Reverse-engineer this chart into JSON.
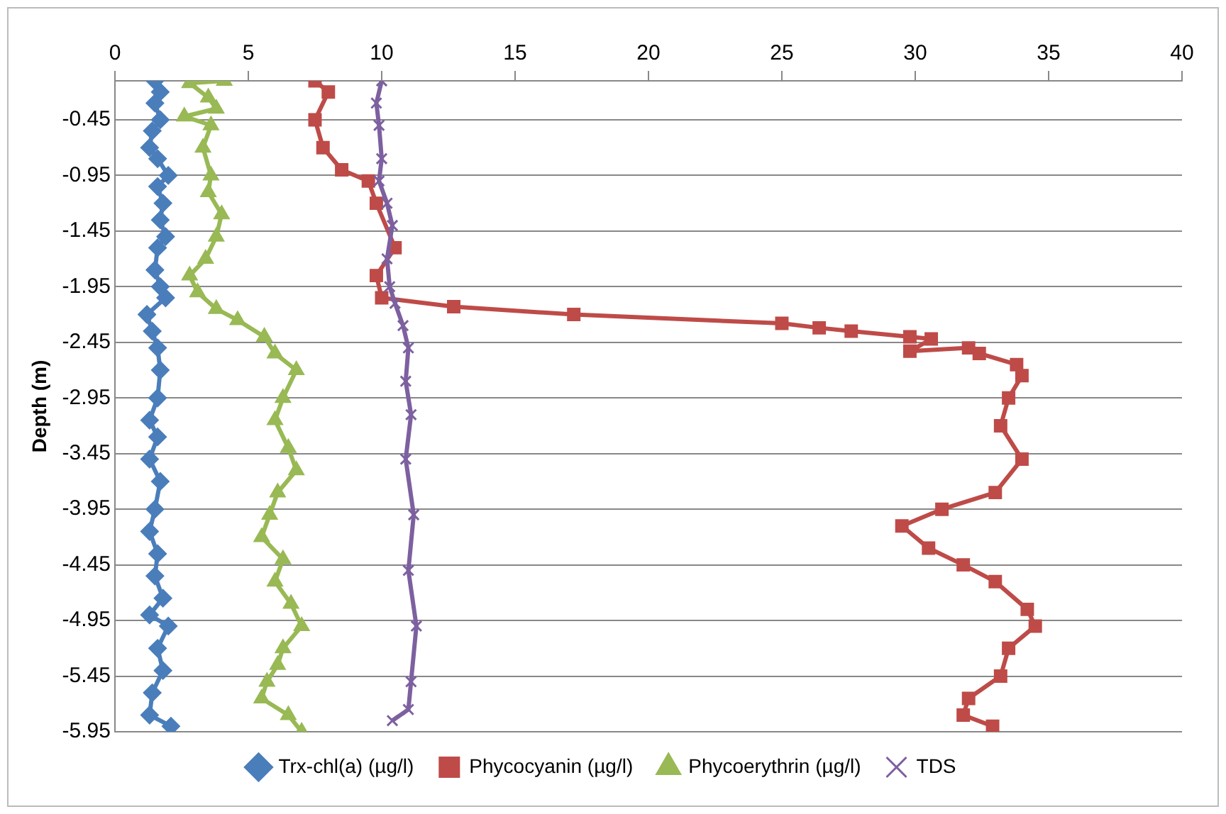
{
  "chart_data": {
    "type": "line",
    "ylabel": "Depth (m)",
    "xlim": [
      0,
      40
    ],
    "xticks": [
      0,
      5,
      10,
      15,
      20,
      25,
      30,
      35,
      40
    ],
    "ylim": [
      -5.95,
      -0.1
    ],
    "yticks": [
      -0.45,
      -0.95,
      -1.45,
      -1.95,
      -2.45,
      -2.95,
      -3.45,
      -3.95,
      -4.45,
      -4.95,
      -5.45,
      -5.95
    ],
    "grid": "y",
    "legend": "bottom",
    "line_style": "solid",
    "series": [
      {
        "name": "Trx-chl(a) (µg/l)",
        "color": "#4a7ebb",
        "marker": "diamond",
        "x": [
          1.5,
          1.7,
          1.5,
          1.7,
          1.4,
          1.3,
          1.6,
          2.0,
          1.6,
          1.8,
          1.7,
          1.9,
          1.6,
          1.5,
          1.7,
          1.9,
          1.2,
          1.4,
          1.6,
          1.7,
          1.6,
          1.3,
          1.6,
          1.3,
          1.7,
          1.5,
          1.3,
          1.6,
          1.5,
          1.8,
          1.3,
          2.0,
          1.6,
          1.8,
          1.4,
          1.3,
          2.1
        ],
        "values": [
          -0.1,
          -0.2,
          -0.3,
          -0.45,
          -0.55,
          -0.7,
          -0.8,
          -0.95,
          -1.05,
          -1.2,
          -1.35,
          -1.5,
          -1.6,
          -1.8,
          -1.95,
          -2.05,
          -2.2,
          -2.35,
          -2.5,
          -2.7,
          -2.95,
          -3.15,
          -3.3,
          -3.5,
          -3.7,
          -3.95,
          -4.15,
          -4.35,
          -4.55,
          -4.75,
          -4.9,
          -5.0,
          -5.2,
          -5.4,
          -5.6,
          -5.8,
          -5.9
        ]
      },
      {
        "name": "Phycocyanin (µg/l)",
        "color": "#be4b48",
        "marker": "square",
        "x": [
          7.5,
          8.0,
          7.5,
          7.8,
          8.5,
          9.5,
          9.8,
          10.5,
          9.8,
          10.0,
          12.7,
          17.2,
          25.0,
          26.4,
          27.6,
          29.8,
          30.6,
          29.8,
          32.0,
          32.4,
          33.8,
          34.0,
          33.5,
          33.2,
          34.0,
          33.0,
          31.0,
          29.5,
          30.5,
          31.8,
          33.0,
          34.2,
          34.5,
          33.5,
          33.2,
          32.0,
          31.8,
          32.9
        ],
        "values": [
          -0.1,
          -0.2,
          -0.45,
          -0.7,
          -0.9,
          -1.0,
          -1.2,
          -1.6,
          -1.85,
          -2.05,
          -2.13,
          -2.2,
          -2.28,
          -2.32,
          -2.35,
          -2.4,
          -2.42,
          -2.53,
          -2.5,
          -2.55,
          -2.65,
          -2.75,
          -2.95,
          -3.2,
          -3.5,
          -3.8,
          -3.95,
          -4.1,
          -4.3,
          -4.45,
          -4.6,
          -4.85,
          -5.0,
          -5.2,
          -5.45,
          -5.65,
          -5.8,
          -5.9
        ]
      },
      {
        "name": "Phycoerythrin (µg/l)",
        "color": "#98b954",
        "marker": "triangle",
        "x": [
          4.1,
          2.8,
          3.5,
          3.8,
          2.6,
          3.6,
          3.3,
          3.6,
          3.5,
          4.0,
          3.8,
          3.4,
          2.8,
          3.1,
          3.8,
          4.6,
          5.6,
          6.0,
          6.8,
          6.3,
          6.0,
          6.5,
          6.8,
          6.1,
          5.8,
          5.5,
          6.3,
          6.0,
          6.6,
          7.0,
          6.3,
          6.1,
          5.7,
          5.5,
          6.5,
          7.0
        ],
        "values": [
          -0.1,
          -0.12,
          -0.25,
          -0.35,
          -0.42,
          -0.5,
          -0.7,
          -0.95,
          -1.1,
          -1.3,
          -1.5,
          -1.7,
          -1.85,
          -2.0,
          -2.15,
          -2.25,
          -2.4,
          -2.55,
          -2.7,
          -2.95,
          -3.15,
          -3.4,
          -3.6,
          -3.8,
          -4.0,
          -4.2,
          -4.4,
          -4.6,
          -4.8,
          -5.0,
          -5.2,
          -5.35,
          -5.5,
          -5.65,
          -5.8,
          -5.95
        ]
      },
      {
        "name": "TDS",
        "color": "#7d60a0",
        "marker": "cross",
        "x": [
          10.0,
          9.8,
          9.9,
          10.0,
          9.9,
          10.2,
          10.4,
          10.2,
          10.3,
          10.5,
          10.8,
          11.0,
          10.9,
          11.1,
          10.9,
          11.2,
          11.0,
          11.3,
          11.1,
          11.0,
          10.4
        ],
        "values": [
          -0.1,
          -0.3,
          -0.5,
          -0.8,
          -1.0,
          -1.2,
          -1.4,
          -1.7,
          -1.95,
          -2.1,
          -2.3,
          -2.5,
          -2.8,
          -3.1,
          -3.5,
          -4.0,
          -4.5,
          -5.0,
          -5.5,
          -5.75,
          -5.85
        ]
      }
    ]
  }
}
